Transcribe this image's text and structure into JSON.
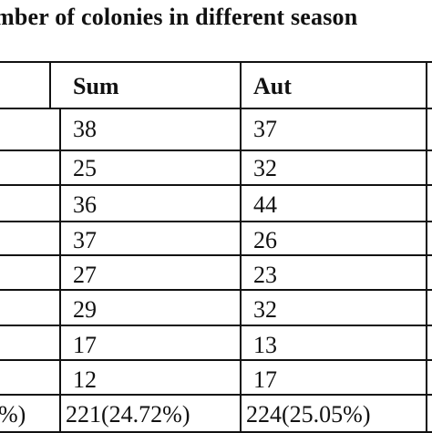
{
  "title": "mber of colonies in different season",
  "table": {
    "headers": [
      "Sum",
      "Aut"
    ],
    "rows": [
      [
        "38",
        "37"
      ],
      [
        "25",
        "32"
      ],
      [
        "36",
        "44"
      ],
      [
        "37",
        "26"
      ],
      [
        "27",
        "23"
      ],
      [
        "29",
        "32"
      ],
      [
        "17",
        "13"
      ],
      [
        "12",
        "17"
      ]
    ],
    "total": {
      "left_fragment": "%)",
      "sum": "221(24.72%)",
      "aut": "224(25.05%)"
    }
  }
}
